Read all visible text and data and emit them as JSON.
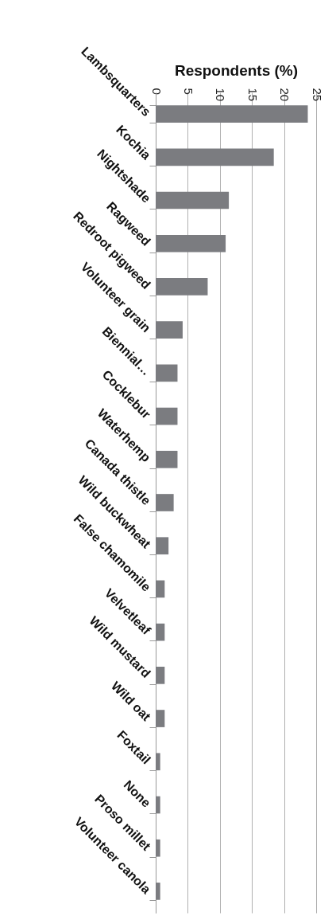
{
  "chart_data": {
    "type": "bar",
    "orientation": "horizontal",
    "xlabel": "Respondents (%)",
    "categories": [
      "Lambsquarters",
      "Kochia",
      "Nightshade",
      "Ragweed",
      "Redroot pigweed",
      "Volunteer grain",
      "Biennial…",
      "Cocklebur",
      "Waterhemp",
      "Canada thistle",
      "Wild buckwheat",
      "False chamomile",
      "Velvetleaf",
      "Wild mustard",
      "Wild oat",
      "Foxtail",
      "None",
      "Proso millet",
      "Volunteer canola"
    ],
    "values": [
      23.7,
      18.4,
      11.4,
      10.9,
      8.1,
      4.2,
      3.4,
      3.4,
      3.4,
      2.8,
      2.0,
      1.4,
      1.4,
      1.4,
      1.4,
      0.7,
      0.7,
      0.7,
      0.7
    ],
    "color": "#7b7c80",
    "xlim": [
      0,
      25
    ],
    "xticks": [
      0,
      5,
      10,
      15,
      20,
      25
    ],
    "grid": "x"
  }
}
